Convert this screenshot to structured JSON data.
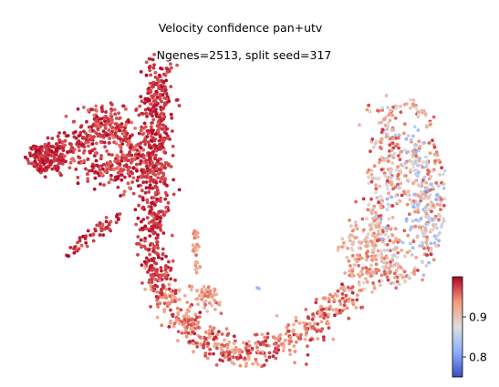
{
  "chart_data": {
    "type": "scatter",
    "title_lines": [
      "Velocity confidence pan+utv",
      ", Ngenes=2513, split seed=317"
    ],
    "xlabel": "",
    "ylabel": "",
    "axes_visible": false,
    "grid": false,
    "colormap": "coolwarm",
    "colorbar": {
      "vmin": 0.75,
      "vmax": 1.0,
      "ticks": [
        0.8,
        0.9
      ],
      "tick_labels": [
        "0.8",
        "0.9"
      ],
      "placement": "bottom-right",
      "colors": [
        "#3b4cc0",
        "#8db0fe",
        "#dddddd",
        "#f49a7b",
        "#b40426"
      ]
    },
    "n_points_approx": 2500,
    "regions": [
      {
        "name": "left-branch",
        "confidence": [
          0.95,
          1.0
        ]
      },
      {
        "name": "vertical-stalk",
        "confidence": [
          0.96,
          1.0
        ]
      },
      {
        "name": "bottom-arc",
        "confidence": [
          0.9,
          0.99
        ]
      },
      {
        "name": "right-cluster",
        "confidence": [
          0.8,
          0.97
        ]
      }
    ]
  }
}
